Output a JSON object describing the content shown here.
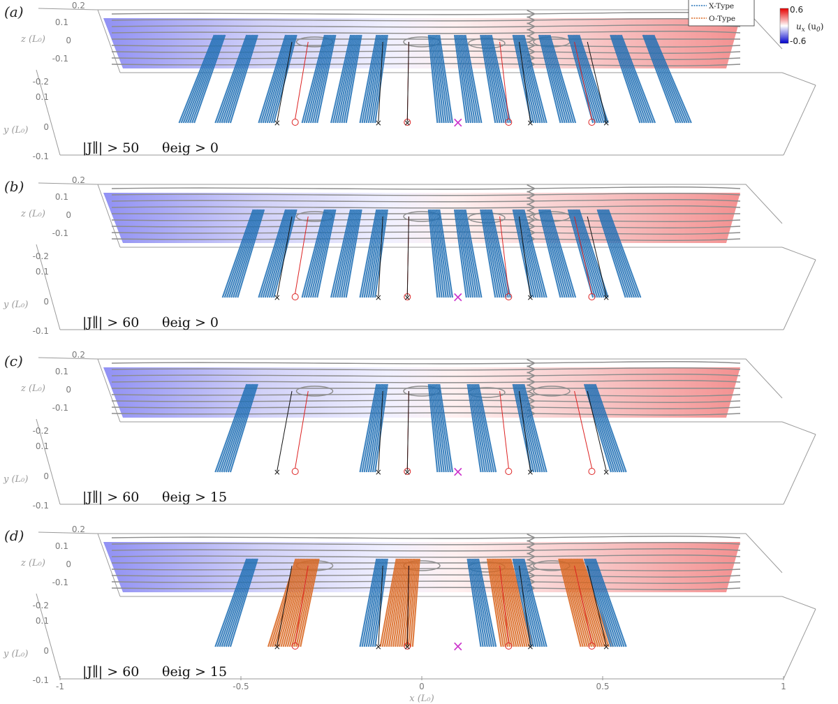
{
  "figure": {
    "legend": [
      {
        "label": "X-Type",
        "color": "#1f6fb5"
      },
      {
        "label": "O-Type",
        "color": "#d9661f"
      }
    ],
    "colorbar": {
      "title": "u_x (u_0)",
      "title_main": "u",
      "title_sub": "x",
      "title_unit": " (u",
      "title_unit_sub": "0",
      "title_unit_close": ")",
      "max_label": "0.6",
      "min_label": "-0.6",
      "max": 0.6,
      "min": -0.6,
      "colormap": [
        "#0000cc",
        "#ffffff",
        "#e60000"
      ]
    },
    "x_axis": {
      "label": "x (L₀)",
      "ticks": [
        -1,
        -0.5,
        0,
        0.5,
        1
      ],
      "tick_labels": [
        "-1",
        "-0.5",
        "0",
        "0.5",
        "1"
      ]
    },
    "z_axis": {
      "label": "z (L₀)",
      "tick_labels": [
        "0.2",
        "0.1",
        "0",
        "-0.1",
        "-0.2"
      ]
    },
    "y_axis": {
      "label": "y (L₀)",
      "tick_labels": [
        "0.1",
        "0",
        "-0.1"
      ]
    },
    "colors": {
      "x_type": "#1f6fb5",
      "o_type": "#d9661f",
      "streamline": "#8c8c8c",
      "x_point_marker": "#111111",
      "o_point_marker": "#dd2222",
      "central_marker": "#cc33cc"
    },
    "markers_x": [
      {
        "type": "X",
        "x": -0.4
      },
      {
        "type": "O",
        "x": -0.35
      },
      {
        "type": "X",
        "x": -0.12
      },
      {
        "type": "O",
        "x": -0.04
      },
      {
        "type": "X",
        "x": -0.04
      },
      {
        "type": "central",
        "x": 0.1
      },
      {
        "type": "O",
        "x": 0.24
      },
      {
        "type": "X",
        "x": 0.3
      },
      {
        "type": "O",
        "x": 0.47
      },
      {
        "type": "X",
        "x": 0.51
      }
    ]
  },
  "chart_data": [
    {
      "type": "3d-fieldline",
      "panel": "(a)",
      "condition_left": "|J∥| > 50",
      "condition_right": "θeig > 0",
      "j_threshold": 50,
      "theta_threshold": 0,
      "flux_ropes_x": [
        {
          "x": -0.62,
          "kind": "X"
        },
        {
          "x": -0.52,
          "kind": "X"
        },
        {
          "x": -0.4,
          "kind": "X"
        },
        {
          "x": -0.28,
          "kind": "X"
        },
        {
          "x": -0.2,
          "kind": "X"
        },
        {
          "x": -0.12,
          "kind": "X"
        },
        {
          "x": 0.04,
          "kind": "X"
        },
        {
          "x": 0.12,
          "kind": "X"
        },
        {
          "x": 0.2,
          "kind": "X"
        },
        {
          "x": 0.3,
          "kind": "X"
        },
        {
          "x": 0.38,
          "kind": "X"
        },
        {
          "x": 0.47,
          "kind": "X"
        },
        {
          "x": 0.6,
          "kind": "X"
        },
        {
          "x": 0.7,
          "kind": "X"
        }
      ]
    },
    {
      "type": "3d-fieldline",
      "panel": "(b)",
      "condition_left": "|J∥| > 60",
      "condition_right": "θeig > 0",
      "j_threshold": 60,
      "theta_threshold": 0,
      "flux_ropes_x": [
        {
          "x": -0.5,
          "kind": "X"
        },
        {
          "x": -0.4,
          "kind": "X"
        },
        {
          "x": -0.28,
          "kind": "X"
        },
        {
          "x": -0.2,
          "kind": "X"
        },
        {
          "x": -0.12,
          "kind": "X"
        },
        {
          "x": 0.04,
          "kind": "X"
        },
        {
          "x": 0.12,
          "kind": "X"
        },
        {
          "x": 0.2,
          "kind": "X"
        },
        {
          "x": 0.3,
          "kind": "X"
        },
        {
          "x": 0.38,
          "kind": "X"
        },
        {
          "x": 0.47,
          "kind": "X"
        },
        {
          "x": 0.56,
          "kind": "X"
        }
      ]
    },
    {
      "type": "3d-fieldline",
      "panel": "(c)",
      "condition_left": "|J∥| > 60",
      "condition_right": "θeig > 15",
      "j_threshold": 60,
      "theta_threshold": 15,
      "flux_ropes_x": [
        {
          "x": -0.52,
          "kind": "X"
        },
        {
          "x": -0.12,
          "kind": "X"
        },
        {
          "x": 0.04,
          "kind": "X"
        },
        {
          "x": 0.16,
          "kind": "X"
        },
        {
          "x": 0.3,
          "kind": "X"
        },
        {
          "x": 0.52,
          "kind": "X"
        }
      ]
    },
    {
      "type": "3d-fieldline",
      "panel": "(d)",
      "condition_left": "|J∥| > 60",
      "condition_right": "θeig > 15",
      "j_threshold": 60,
      "theta_threshold": 15,
      "flux_ropes_x": [
        {
          "x": -0.52,
          "kind": "X"
        },
        {
          "x": -0.35,
          "kind": "O"
        },
        {
          "x": -0.12,
          "kind": "X"
        },
        {
          "x": -0.04,
          "kind": "O"
        },
        {
          "x": 0.16,
          "kind": "X"
        },
        {
          "x": 0.24,
          "kind": "O"
        },
        {
          "x": 0.3,
          "kind": "X"
        },
        {
          "x": 0.46,
          "kind": "O"
        },
        {
          "x": 0.52,
          "kind": "X"
        }
      ]
    }
  ]
}
